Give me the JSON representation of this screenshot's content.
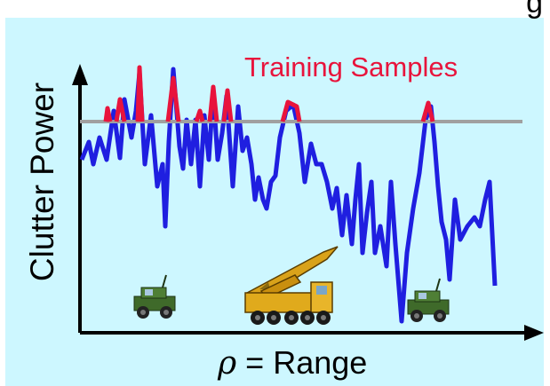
{
  "title_fragment": "g",
  "annotation": "Training Samples",
  "ylabel": "Clutter Power",
  "xlabel_symbol": "ρ",
  "xlabel_text": " = Range",
  "colors": {
    "background": "#cdf7ff",
    "clutter": "#1f1fe0",
    "training": "#e8143c",
    "threshold": "#a0a0a0",
    "vehicle": "#3f6a2a",
    "launcher": "#d9a21a"
  },
  "icons": [
    "military-jeep-icon",
    "missile-launcher-icon",
    "military-jeep-icon"
  ]
}
